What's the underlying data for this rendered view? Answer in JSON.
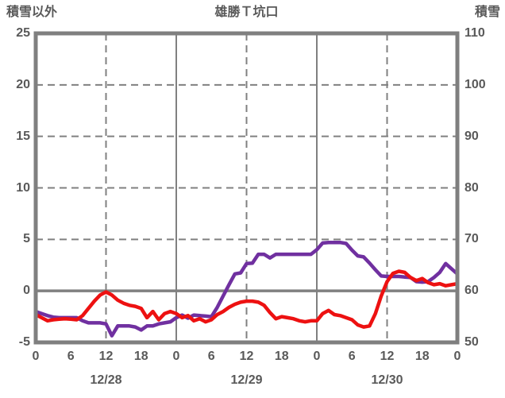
{
  "header": {
    "left_axis_title": "積雪以外",
    "chart_title": "雄勝Ｔ坑口",
    "right_axis_title": "積雪"
  },
  "colors": {
    "grid_gray": "#808080",
    "border_gray": "#7f7f7f",
    "text_gray": "#595959",
    "series_red": "#ed1111",
    "series_purple": "#7030a0",
    "background": "#ffffff"
  },
  "chart_data": {
    "type": "line",
    "title": "雄勝Ｔ坑口",
    "x_unit": "hour",
    "x_start_hour": 0,
    "x_end_hour": 72,
    "x_step_hours": 1,
    "x_tick_interval_hours": 6,
    "x_tick_labels": [
      "0",
      "6",
      "12",
      "18",
      "0",
      "6",
      "12",
      "18",
      "0",
      "6",
      "12",
      "18",
      "0"
    ],
    "date_labels": [
      "12/28",
      "12/29",
      "12/30"
    ],
    "date_label_center_hours": [
      12,
      36,
      60
    ],
    "left_axis": {
      "title": "積雪以外",
      "min": -5,
      "max": 25,
      "ticks": [
        25,
        20,
        15,
        10,
        5,
        0,
        -5
      ]
    },
    "right_axis": {
      "title": "積雪",
      "min": 50,
      "max": 110,
      "ticks": [
        110,
        100,
        90,
        80,
        70,
        60,
        50
      ]
    },
    "grid": {
      "horizontal_dashed_left_values": [
        20,
        15,
        10,
        5
      ],
      "zero_line_left_value": 0,
      "vertical_solid_hours": [
        24,
        48
      ],
      "vertical_dashed_hours": [
        12,
        36,
        60
      ],
      "legend": "none"
    },
    "series": [
      {
        "name": "積雪",
        "axis": "right",
        "color": "#7030a0",
        "values": [
          56.0,
          55.6,
          55.2,
          54.9,
          54.8,
          54.8,
          54.8,
          54.8,
          54.2,
          53.8,
          53.8,
          53.8,
          53.6,
          51.3,
          53.2,
          53.2,
          53.2,
          53.0,
          52.4,
          53.2,
          53.2,
          53.6,
          53.8,
          54.0,
          54.8,
          55.3,
          54.7,
          55.3,
          55.2,
          55.1,
          55.0,
          56.8,
          59.0,
          61.2,
          63.3,
          63.5,
          65.3,
          65.4,
          67.1,
          67.1,
          66.4,
          67.1,
          67.1,
          67.1,
          67.1,
          67.1,
          67.1,
          67.1,
          68.0,
          69.3,
          69.4,
          69.4,
          69.4,
          69.2,
          67.9,
          66.8,
          66.6,
          65.4,
          64.1,
          62.9,
          62.8,
          62.8,
          62.8,
          62.7,
          62.6,
          61.8,
          61.7,
          61.8,
          62.6,
          63.6,
          65.3,
          64.3,
          63.3
        ]
      },
      {
        "name": "積雪以外",
        "axis": "left",
        "color": "#ed1111",
        "values": [
          -2.3,
          -2.6,
          -2.9,
          -2.8,
          -2.75,
          -2.7,
          -2.75,
          -2.8,
          -2.4,
          -1.7,
          -1.0,
          -0.4,
          -0.1,
          -0.4,
          -0.9,
          -1.2,
          -1.4,
          -1.5,
          -1.7,
          -2.6,
          -2.0,
          -2.8,
          -2.2,
          -2.0,
          -2.2,
          -2.6,
          -2.4,
          -2.9,
          -2.7,
          -3.0,
          -2.8,
          -2.3,
          -2.0,
          -1.6,
          -1.3,
          -1.1,
          -1.0,
          -1.0,
          -1.1,
          -1.4,
          -2.1,
          -2.7,
          -2.5,
          -2.6,
          -2.7,
          -2.9,
          -3.0,
          -2.9,
          -2.9,
          -2.2,
          -1.9,
          -2.3,
          -2.4,
          -2.6,
          -2.8,
          -3.3,
          -3.5,
          -3.4,
          -2.2,
          -0.5,
          0.9,
          1.7,
          1.9,
          1.8,
          1.3,
          1.0,
          1.2,
          0.8,
          0.6,
          0.7,
          0.5,
          0.6,
          0.7
        ]
      }
    ]
  }
}
